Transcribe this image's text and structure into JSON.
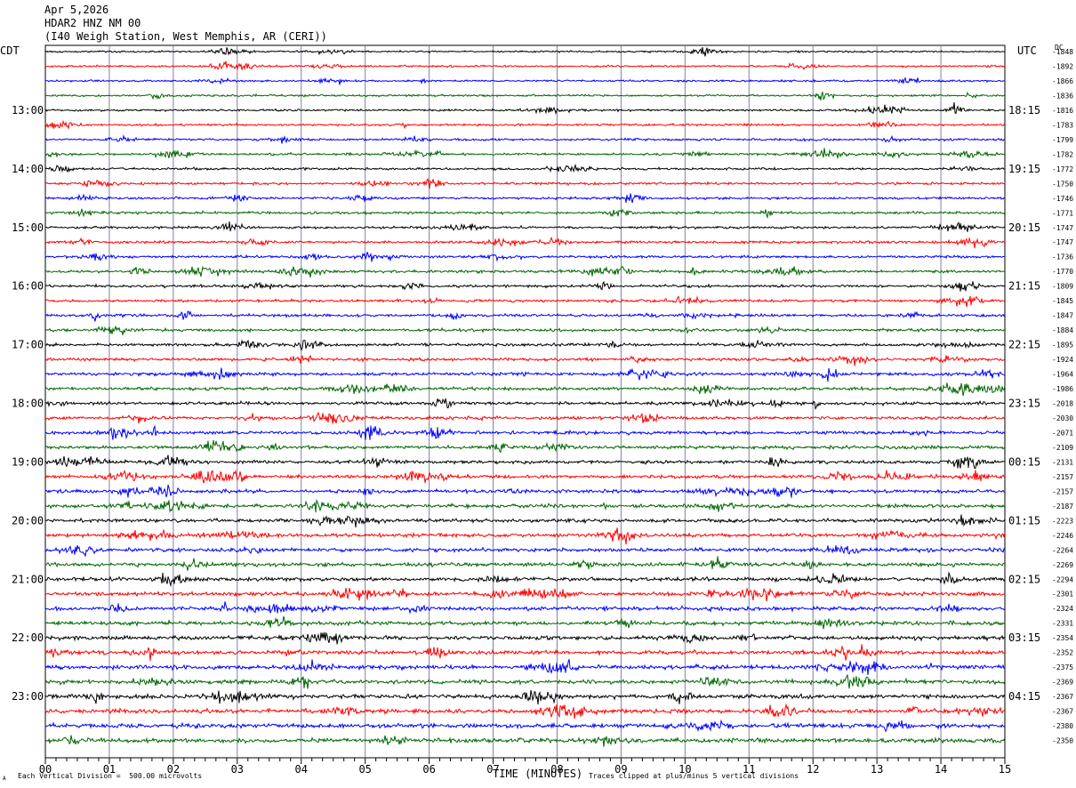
{
  "header": {
    "date": "Apr 5,2026",
    "station": "HDAR2 HNZ NM 00",
    "location": "(I40 Weigh Station, West Memphis, AR (CERI))"
  },
  "left_tz": "CDT",
  "right_tz": "UTC",
  "dc_label": "DC",
  "footer": {
    "scale_note": "Each Vertical Division =  500.00 microvolts",
    "clip_note": "Traces clipped at plus/minus 5 vertical divisions",
    "corner_mark": "A"
  },
  "colors": {
    "trace_cycle": [
      "#000000",
      "#ff0000",
      "#0000ff",
      "#006600"
    ],
    "grid": "#8080a0"
  },
  "chart_data": {
    "type": "line",
    "title": "HDAR2 HNZ NM 00",
    "xlabel": "TIME (MINUTES)",
    "ylabel": "",
    "xlim": [
      0,
      15
    ],
    "x_ticks": [
      "00",
      "01",
      "02",
      "03",
      "04",
      "05",
      "06",
      "07",
      "08",
      "09",
      "10",
      "11",
      "12",
      "13",
      "14",
      "15"
    ],
    "traces_per_hour": 4,
    "left_hour_labels": [
      "13:00",
      "14:00",
      "15:00",
      "16:00",
      "17:00",
      "18:00",
      "19:00",
      "20:00",
      "21:00",
      "22:00",
      "23:00"
    ],
    "right_hour_labels": [
      "18:15",
      "19:15",
      "20:15",
      "21:15",
      "22:15",
      "23:15",
      "00:15",
      "01:15",
      "02:15",
      "03:15",
      "04:15"
    ],
    "dc_offsets": [
      -1848,
      -1892,
      -1866,
      -1836,
      -1816,
      -1783,
      -1799,
      -1782,
      -1772,
      -1750,
      -1746,
      -1771,
      -1747,
      -1747,
      -1736,
      -1770,
      -1809,
      -1845,
      -1847,
      -1884,
      -1895,
      -1924,
      -1964,
      -1986,
      -2018,
      -2030,
      -2071,
      -2109,
      -2131,
      -2157,
      -2157,
      -2187,
      -2223,
      -2246,
      -2264,
      -2269,
      -2294,
      -2301,
      -2324,
      -2331,
      -2354,
      -2352,
      -2375,
      -2369,
      -2367,
      -2367,
      -2380,
      -2350
    ],
    "grid": true
  }
}
